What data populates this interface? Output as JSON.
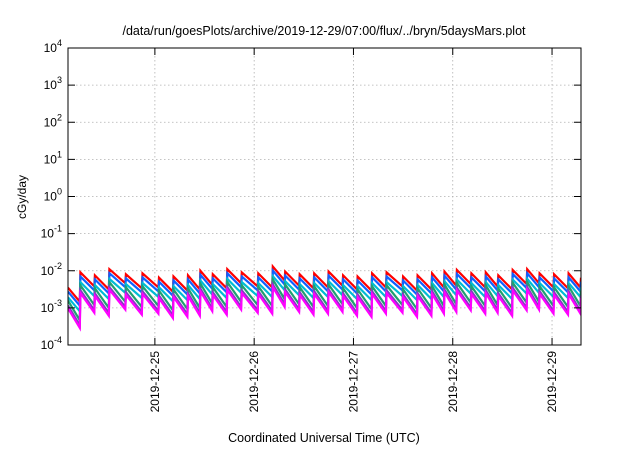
{
  "chart_data": {
    "type": "line",
    "title": "/data/run/goesPlots/archive/2019-12-29/07:00/flux/../bryn/5daysMars.plot",
    "xlabel": "Coordinated Universal Time (UTC)",
    "ylabel": "cGy/day",
    "yscale": "log",
    "ylim": [
      0.0001,
      10000
    ],
    "yticks": [
      {
        "value": 0.0001,
        "base": "10",
        "exp": "-4"
      },
      {
        "value": 0.001,
        "base": "10",
        "exp": "-3"
      },
      {
        "value": 0.01,
        "base": "10",
        "exp": "-2"
      },
      {
        "value": 0.1,
        "base": "10",
        "exp": "-1"
      },
      {
        "value": 1,
        "base": "10",
        "exp": "0"
      },
      {
        "value": 10,
        "base": "10",
        "exp": "1"
      },
      {
        "value": 100,
        "base": "10",
        "exp": "2"
      },
      {
        "value": 1000,
        "base": "10",
        "exp": "3"
      },
      {
        "value": 10000,
        "base": "10",
        "exp": "4"
      }
    ],
    "xlim": [
      "2019-12-24 03:00",
      "2019-12-29 07:00"
    ],
    "xticks": [
      "2019-12-25",
      "2019-12-26",
      "2019-12-27",
      "2019-12-28",
      "2019-12-29"
    ],
    "grid": true,
    "series_colors": [
      "#ff0000",
      "#1060ff",
      "#00bcd4",
      "#20a070",
      "#8040c0",
      "#ff00ff"
    ],
    "sawtooth": {
      "peaks": [
        "2019-12-24 03:00",
        "2019-12-24 06:00",
        "2019-12-24 09:30",
        "2019-12-24 13:00",
        "2019-12-24 17:00",
        "2019-12-24 21:00",
        "2019-12-25 01:00",
        "2019-12-25 04:30",
        "2019-12-25 08:00",
        "2019-12-25 11:00",
        "2019-12-25 14:00",
        "2019-12-25 17:30",
        "2019-12-25 21:00",
        "2019-12-26 01:00",
        "2019-12-26 04:30",
        "2019-12-26 07:30",
        "2019-12-26 11:00",
        "2019-12-26 14:30",
        "2019-12-26 18:00",
        "2019-12-26 21:30",
        "2019-12-27 01:00",
        "2019-12-27 04:30",
        "2019-12-27 08:00",
        "2019-12-27 12:00",
        "2019-12-27 15:30",
        "2019-12-27 19:00",
        "2019-12-27 22:00",
        "2019-12-28 01:00",
        "2019-12-28 04:30",
        "2019-12-28 08:00",
        "2019-12-28 11:00",
        "2019-12-28 14:30",
        "2019-12-28 18:00",
        "2019-12-28 21:00",
        "2019-12-29 00:30",
        "2019-12-29 04:00",
        "2019-12-29 07:00"
      ],
      "peak_values": [
        0.0035,
        0.009,
        0.0075,
        0.011,
        0.008,
        0.0085,
        0.0065,
        0.007,
        0.0075,
        0.01,
        0.008,
        0.011,
        0.009,
        0.0085,
        0.013,
        0.0095,
        0.008,
        0.0085,
        0.0095,
        0.0075,
        0.007,
        0.0085,
        0.009,
        0.007,
        0.0075,
        0.0085,
        0.0095,
        0.0105,
        0.0085,
        0.009,
        0.0075,
        0.0105,
        0.011,
        0.0085,
        0.008,
        0.0085,
        0.0065
      ],
      "decay_ratio": 0.42,
      "series_factors": [
        1.0,
        0.78,
        0.55,
        0.45,
        0.33,
        0.28
      ]
    }
  }
}
